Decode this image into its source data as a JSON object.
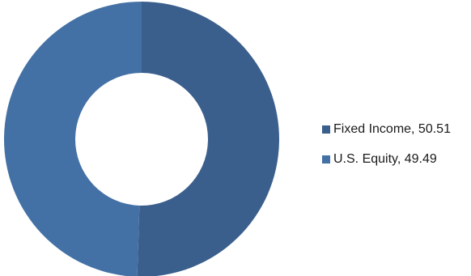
{
  "chart_data": {
    "type": "pie",
    "subtype": "donut",
    "title": "",
    "categories": [
      "Fixed Income",
      "U.S. Equity"
    ],
    "values": [
      50.51,
      49.49
    ],
    "colors": [
      "#3b5f8d",
      "#4471a5"
    ],
    "legend": {
      "position": "right",
      "items": [
        {
          "label": "Fixed Income, 50.51",
          "color": "#3b5f8d"
        },
        {
          "label": "U.S. Equity, 49.49",
          "color": "#4471a5"
        }
      ]
    }
  }
}
